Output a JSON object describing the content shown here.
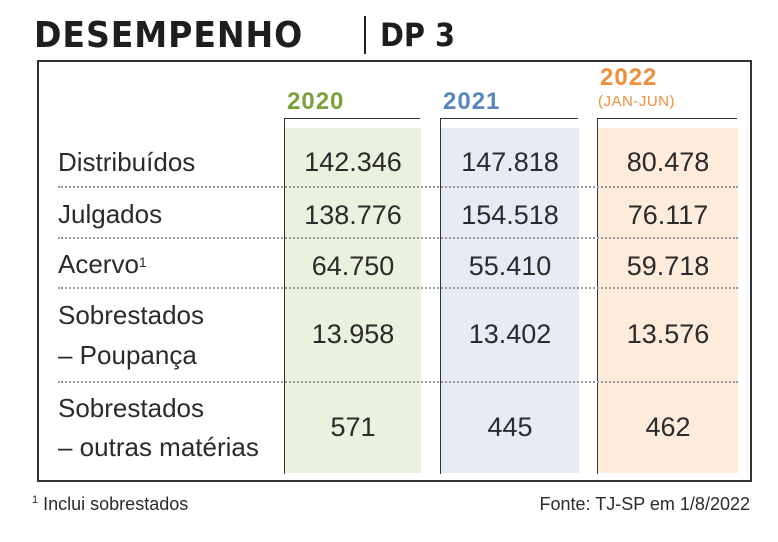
{
  "title": {
    "main": "DESEMPENHO",
    "sub": "DP 3"
  },
  "columns": [
    {
      "year": "2020",
      "color": "#7aa23a"
    },
    {
      "year": "2021",
      "color": "#5a86c0"
    },
    {
      "year": "2022",
      "subtitle": "(JAN-JUN)",
      "color": "#f08f3a"
    }
  ],
  "rows": [
    {
      "label": "Distribuídos",
      "values": [
        "142.346",
        "147.818",
        "80.478"
      ]
    },
    {
      "label": "Julgados",
      "values": [
        "138.776",
        "154.518",
        "76.117"
      ]
    },
    {
      "label": "Acervo",
      "footnote_mark": "1",
      "values": [
        "64.750",
        "55.410",
        "59.718"
      ]
    },
    {
      "label_line1": "Sobrestados",
      "label_line2": "– Poupança",
      "values": [
        "13.958",
        "13.402",
        "13.576"
      ]
    },
    {
      "label_line1": "Sobrestados",
      "label_line2": "– outras matérias",
      "values": [
        "571",
        "445",
        "462"
      ]
    }
  ],
  "footnote": {
    "mark": "1",
    "text": "Inclui sobrestados"
  },
  "source": "Fonte: TJ-SP em 1/8/2022",
  "chart_data": {
    "type": "table",
    "columns": [
      "2020",
      "2021",
      "2022 (JAN-JUN)"
    ],
    "rows": [
      {
        "name": "Distribuídos",
        "values": [
          142346,
          147818,
          80478
        ]
      },
      {
        "name": "Julgados",
        "values": [
          138776,
          154518,
          76117
        ]
      },
      {
        "name": "Acervo",
        "values": [
          64750,
          55410,
          59718
        ]
      },
      {
        "name": "Sobrestados – Poupança",
        "values": [
          13958,
          13402,
          13576
        ]
      },
      {
        "name": "Sobrestados – outras matérias",
        "values": [
          571,
          445,
          462
        ]
      }
    ]
  }
}
